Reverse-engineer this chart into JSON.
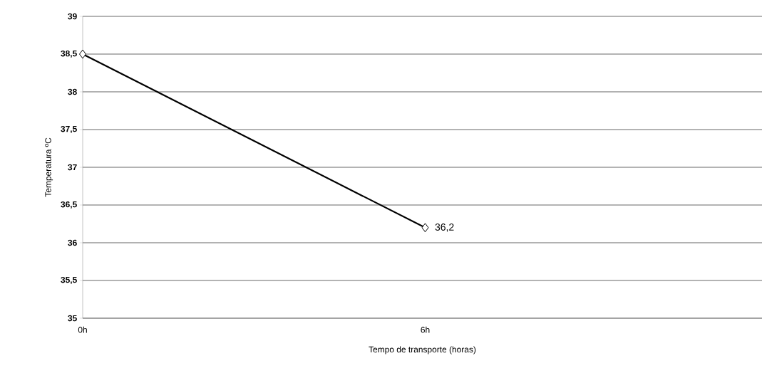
{
  "chart_data": {
    "type": "line",
    "xlabel": "Tempo de transporte (horas)",
    "ylabel": "Temperatura ºC",
    "x": [
      0,
      6
    ],
    "xlim": [
      0,
      11.9
    ],
    "xticks": [
      {
        "value": 0,
        "label": "0h"
      },
      {
        "value": 6,
        "label": "6h"
      }
    ],
    "ylim": [
      35,
      39
    ],
    "yticks": [
      {
        "value": 35,
        "label": "35"
      },
      {
        "value": 35.5,
        "label": "35,5"
      },
      {
        "value": 36,
        "label": "36"
      },
      {
        "value": 36.5,
        "label": "36,5"
      },
      {
        "value": 37,
        "label": "37"
      },
      {
        "value": 37.5,
        "label": "37,5"
      },
      {
        "value": 38,
        "label": "38"
      },
      {
        "value": 38.5,
        "label": "38,5"
      },
      {
        "value": 39,
        "label": "39"
      }
    ],
    "series": [
      {
        "color": "#000000",
        "values": [
          38.5,
          36.2
        ],
        "value_labels": [
          null,
          "36,2"
        ]
      }
    ],
    "grid": "y",
    "marker": "diamond",
    "line_style": "solid"
  }
}
